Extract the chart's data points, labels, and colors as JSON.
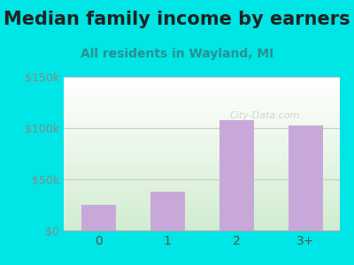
{
  "title": "Median family income by earners",
  "subtitle": "All residents in Wayland, MI",
  "categories": [
    "0",
    "1",
    "2",
    "3+"
  ],
  "values": [
    25000,
    38000,
    108000,
    103000
  ],
  "bar_color": "#c8a8d8",
  "ylim": [
    0,
    150000
  ],
  "yticks": [
    0,
    50000,
    100000,
    150000
  ],
  "ytick_labels": [
    "$0",
    "$50k",
    "$100k",
    "$150k"
  ],
  "title_fontsize": 15,
  "subtitle_fontsize": 10,
  "title_color": "#222222",
  "subtitle_color": "#2a9090",
  "outer_bg": "#00e5e5",
  "plot_bg_top": "#ffffff",
  "plot_bg_bottom": "#d0ecd0",
  "watermark": "City-Data.com",
  "xlabel_color": "#555555",
  "ylabel_color": "#888888",
  "grid_color": "#cccccc"
}
